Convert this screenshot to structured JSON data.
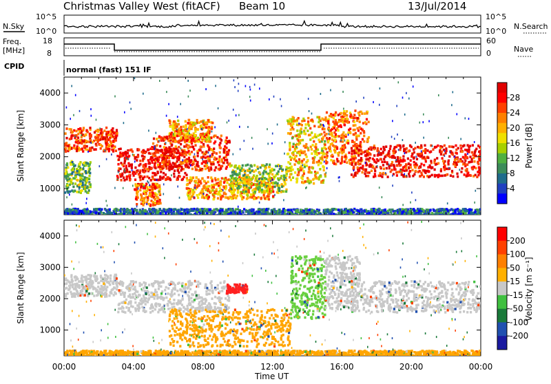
{
  "header": {
    "title": "Christmas Valley West (fitACF)",
    "beam": "Beam 10",
    "date": "13/Jul/2014"
  },
  "strip": {
    "nsky_label": "N.Sky",
    "nsky_ticks": [
      "10^5",
      "10^0"
    ],
    "nsearch_label": "N.Search",
    "nsearch_ticks": [
      "10^5",
      "10^0"
    ],
    "freq_label_line1": "Freq.",
    "freq_label_line2": "[MHz]",
    "freq_ticks": [
      "18",
      "8"
    ],
    "nave_label": "Nave",
    "nave_ticks": [
      "60",
      "0"
    ],
    "cpid_label": "CPID",
    "cpid_text": "normal (fast) 151 IF"
  },
  "chart_data": [
    {
      "type": "heatmap",
      "name": "power-panel",
      "ylabel": "Slant Range [km]",
      "xlabel": "Time UT",
      "x_ticks": [
        "00:00",
        "04:00",
        "08:00",
        "12:00",
        "16:00",
        "20:00",
        "00:00"
      ],
      "xlim_hours": [
        0,
        24
      ],
      "ylim": [
        180,
        4500
      ],
      "y_ticks": [
        1000,
        2000,
        3000,
        4000
      ],
      "colorbar": {
        "label": "Power [dB]",
        "ticks": [
          "4",
          "8",
          "12",
          "16",
          "20",
          "24",
          "28"
        ],
        "range": [
          0,
          30
        ],
        "colors": [
          "#0000ff",
          "#2040c0",
          "#1f6c8c",
          "#3c8c5a",
          "#50b040",
          "#a8d000",
          "#f0e000",
          "#ffb000",
          "#ff8000",
          "#ff4000",
          "#ff0000",
          "#e00000"
        ]
      },
      "blobs": [
        {
          "t0": 0.0,
          "t1": 3.0,
          "r0": 2200,
          "r1": 2950,
          "p": 24
        },
        {
          "t0": 0.0,
          "t1": 1.5,
          "r0": 900,
          "r1": 1900,
          "p": 12
        },
        {
          "t0": 3.0,
          "t1": 7.0,
          "r0": 1300,
          "r1": 2300,
          "p": 28
        },
        {
          "t0": 4.0,
          "t1": 5.5,
          "r0": 500,
          "r1": 1200,
          "p": 22
        },
        {
          "t0": 5.0,
          "t1": 9.5,
          "r0": 1600,
          "r1": 2700,
          "p": 25
        },
        {
          "t0": 7.0,
          "t1": 12.0,
          "r0": 700,
          "r1": 1400,
          "p": 20
        },
        {
          "t0": 9.5,
          "t1": 12.8,
          "r0": 900,
          "r1": 1800,
          "p": 14
        },
        {
          "t0": 12.8,
          "t1": 15.0,
          "r0": 1200,
          "r1": 3300,
          "p": 18
        },
        {
          "t0": 15.0,
          "t1": 17.5,
          "r0": 1800,
          "r1": 3500,
          "p": 22
        },
        {
          "t0": 16.5,
          "t1": 24.0,
          "r0": 1400,
          "r1": 2400,
          "p": 27
        },
        {
          "t0": 6.0,
          "t1": 8.5,
          "r0": 2500,
          "r1": 3200,
          "p": 20
        },
        {
          "t0": 0.0,
          "t1": 24.0,
          "r0": 180,
          "r1": 400,
          "p": 6
        }
      ]
    },
    {
      "type": "heatmap",
      "name": "velocity-panel",
      "ylabel": "Slant Range [km]",
      "xlabel": "Time UT",
      "x_ticks": [
        "00:00",
        "04:00",
        "08:00",
        "12:00",
        "16:00",
        "20:00",
        "00:00"
      ],
      "xlim_hours": [
        0,
        24
      ],
      "ylim": [
        180,
        4500
      ],
      "y_ticks": [
        1000,
        2000,
        3000,
        4000
      ],
      "colorbar": {
        "label": "Velocity [m s⁻¹]",
        "ticks": [
          "200",
          "100",
          "50",
          "15",
          "-15",
          "-50",
          "-100",
          "-200"
        ],
        "colors": [
          "#1a1aa0",
          "#2050b0",
          "#1a7a3a",
          "#40c040",
          "#c8c8c8",
          "#ffb000",
          "#ff8000",
          "#ff4000",
          "#ff0000"
        ]
      },
      "blobs": [
        {
          "t0": 0.0,
          "t1": 3.0,
          "r0": 2100,
          "r1": 2800,
          "v": "gray"
        },
        {
          "t0": 3.0,
          "t1": 9.5,
          "r0": 1600,
          "r1": 2600,
          "v": "gray"
        },
        {
          "t0": 6.0,
          "t1": 13.0,
          "r0": 500,
          "r1": 1700,
          "v": "orange"
        },
        {
          "t0": 13.0,
          "t1": 15.0,
          "r0": 1400,
          "r1": 3400,
          "v": "green"
        },
        {
          "t0": 15.0,
          "t1": 17.0,
          "r0": 1700,
          "r1": 3400,
          "v": "gray"
        },
        {
          "t0": 16.5,
          "t1": 24.0,
          "r0": 1600,
          "r1": 2600,
          "v": "gray"
        },
        {
          "t0": 0.0,
          "t1": 24.0,
          "r0": 180,
          "r1": 380,
          "v": "orange"
        },
        {
          "t0": 9.3,
          "t1": 10.5,
          "r0": 2200,
          "r1": 2500,
          "v": "red"
        }
      ]
    }
  ]
}
